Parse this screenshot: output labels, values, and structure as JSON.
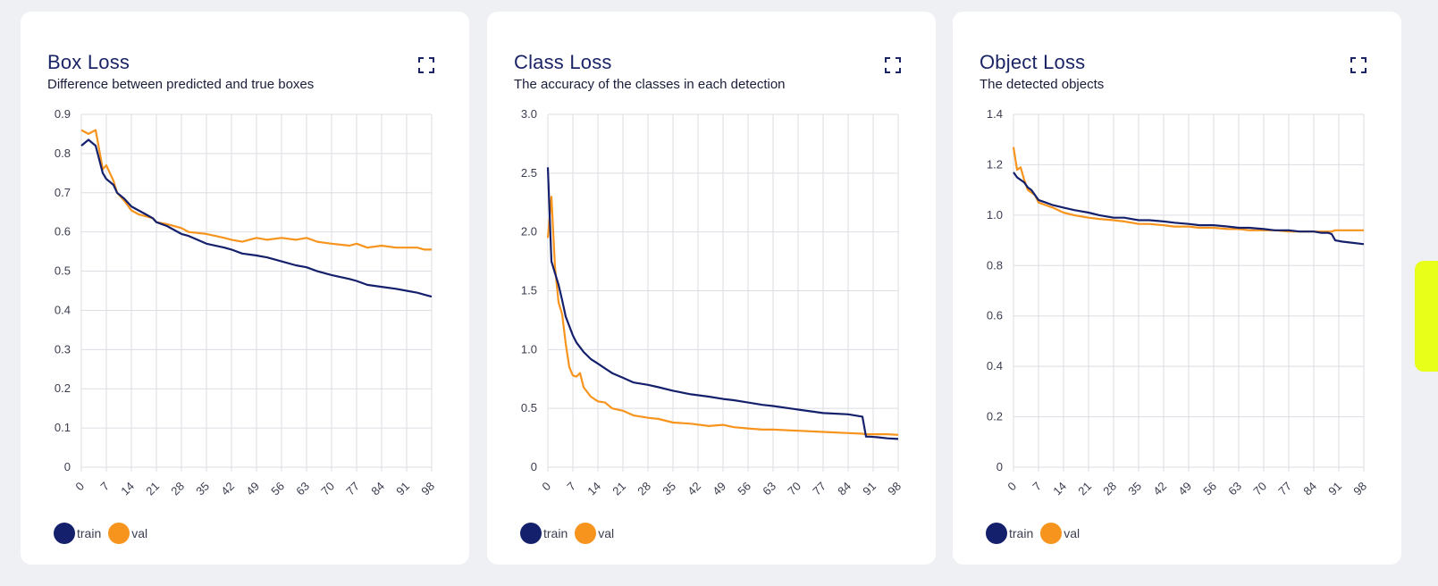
{
  "colors": {
    "train": "#14206b",
    "val": "#f7941d",
    "grid": "#dcdde3"
  },
  "legend": {
    "train": "train",
    "val": "val"
  },
  "icons": {
    "expand": "expand-icon"
  },
  "x_ticks": [
    "0",
    "7",
    "14",
    "21",
    "28",
    "35",
    "42",
    "49",
    "56",
    "63",
    "70",
    "77",
    "84",
    "91",
    "98"
  ],
  "cards": [
    {
      "title": "Box Loss",
      "subtitle": "Difference between predicted and true boxes",
      "y_ticks": [
        "0",
        "0.1",
        "0.2",
        "0.3",
        "0.4",
        "0.5",
        "0.6",
        "0.7",
        "0.8",
        "0.9"
      ]
    },
    {
      "title": "Class Loss",
      "subtitle": "The accuracy of the classes in each detection",
      "y_ticks": [
        "0",
        "0.5",
        "1.0",
        "1.5",
        "2.0",
        "2.5",
        "3.0"
      ]
    },
    {
      "title": "Object Loss",
      "subtitle": "The detected objects",
      "y_ticks": [
        "0",
        "0.2",
        "0.4",
        "0.6",
        "0.8",
        "1.0",
        "1.2",
        "1.4"
      ]
    }
  ],
  "chart_data": [
    {
      "type": "line",
      "title": "Box Loss",
      "xlabel": "",
      "ylabel": "",
      "xlim": [
        0,
        98
      ],
      "ylim": [
        0,
        0.9
      ],
      "x": [
        0,
        2,
        4,
        6,
        7,
        9,
        10,
        12,
        14,
        16,
        18,
        20,
        21,
        24,
        28,
        30,
        35,
        40,
        42,
        45,
        49,
        52,
        56,
        60,
        63,
        66,
        70,
        75,
        77,
        80,
        84,
        88,
        91,
        94,
        96,
        98
      ],
      "series": [
        {
          "name": "train",
          "values": [
            0.82,
            0.835,
            0.82,
            0.75,
            0.735,
            0.72,
            0.7,
            0.685,
            0.665,
            0.655,
            0.645,
            0.635,
            0.625,
            0.615,
            0.595,
            0.59,
            0.57,
            0.56,
            0.555,
            0.545,
            0.54,
            0.535,
            0.525,
            0.515,
            0.51,
            0.5,
            0.49,
            0.48,
            0.475,
            0.465,
            0.46,
            0.455,
            0.45,
            0.445,
            0.44,
            0.435
          ]
        },
        {
          "name": "val",
          "values": [
            0.86,
            0.85,
            0.86,
            0.76,
            0.77,
            0.73,
            0.7,
            0.68,
            0.655,
            0.645,
            0.64,
            0.635,
            0.625,
            0.62,
            0.61,
            0.6,
            0.595,
            0.585,
            0.58,
            0.575,
            0.585,
            0.58,
            0.585,
            0.58,
            0.585,
            0.575,
            0.57,
            0.565,
            0.57,
            0.56,
            0.565,
            0.56,
            0.56,
            0.56,
            0.555,
            0.555
          ]
        }
      ]
    },
    {
      "type": "line",
      "title": "Class Loss",
      "xlabel": "",
      "ylabel": "",
      "xlim": [
        0,
        98
      ],
      "ylim": [
        0,
        3.0
      ],
      "x": [
        0,
        1,
        2,
        3,
        4,
        5,
        6,
        7,
        8,
        9,
        10,
        12,
        14,
        16,
        18,
        21,
        24,
        28,
        31,
        35,
        40,
        45,
        49,
        52,
        56,
        60,
        63,
        70,
        77,
        84,
        88,
        89,
        90,
        92,
        95,
        98
      ],
      "series": [
        {
          "name": "train",
          "values": [
            2.55,
            1.75,
            1.65,
            1.55,
            1.42,
            1.28,
            1.2,
            1.12,
            1.06,
            1.02,
            0.98,
            0.92,
            0.88,
            0.84,
            0.8,
            0.76,
            0.72,
            0.7,
            0.68,
            0.65,
            0.62,
            0.6,
            0.58,
            0.57,
            0.55,
            0.53,
            0.52,
            0.49,
            0.46,
            0.45,
            0.43,
            0.26,
            0.26,
            0.255,
            0.245,
            0.24
          ]
        },
        {
          "name": "val",
          "values": [
            1.95,
            2.3,
            1.7,
            1.4,
            1.3,
            1.05,
            0.85,
            0.78,
            0.77,
            0.8,
            0.68,
            0.6,
            0.56,
            0.55,
            0.5,
            0.48,
            0.44,
            0.42,
            0.41,
            0.38,
            0.37,
            0.35,
            0.36,
            0.34,
            0.33,
            0.32,
            0.32,
            0.31,
            0.3,
            0.29,
            0.285,
            0.28,
            0.28,
            0.28,
            0.28,
            0.275
          ]
        }
      ]
    },
    {
      "type": "line",
      "title": "Object Loss",
      "xlabel": "",
      "ylabel": "",
      "xlim": [
        0,
        98
      ],
      "ylim": [
        0,
        1.4
      ],
      "x": [
        0,
        1,
        2,
        3,
        4,
        5,
        6,
        7,
        9,
        11,
        14,
        17,
        21,
        24,
        28,
        31,
        35,
        38,
        42,
        45,
        49,
        52,
        56,
        60,
        63,
        66,
        70,
        73,
        77,
        80,
        84,
        86,
        88,
        89,
        90,
        92,
        95,
        98
      ],
      "series": [
        {
          "name": "train",
          "values": [
            1.17,
            1.15,
            1.14,
            1.13,
            1.11,
            1.1,
            1.08,
            1.06,
            1.05,
            1.04,
            1.03,
            1.02,
            1.01,
            1.0,
            0.99,
            0.99,
            0.98,
            0.98,
            0.975,
            0.97,
            0.965,
            0.96,
            0.96,
            0.955,
            0.95,
            0.95,
            0.945,
            0.94,
            0.94,
            0.935,
            0.935,
            0.93,
            0.93,
            0.925,
            0.9,
            0.895,
            0.89,
            0.885
          ]
        },
        {
          "name": "val",
          "values": [
            1.27,
            1.18,
            1.19,
            1.14,
            1.1,
            1.09,
            1.08,
            1.05,
            1.04,
            1.03,
            1.01,
            1.0,
            0.99,
            0.985,
            0.98,
            0.975,
            0.965,
            0.965,
            0.96,
            0.955,
            0.955,
            0.95,
            0.95,
            0.945,
            0.945,
            0.94,
            0.94,
            0.94,
            0.935,
            0.935,
            0.935,
            0.935,
            0.935,
            0.935,
            0.94,
            0.94,
            0.94,
            0.94
          ]
        }
      ]
    }
  ]
}
